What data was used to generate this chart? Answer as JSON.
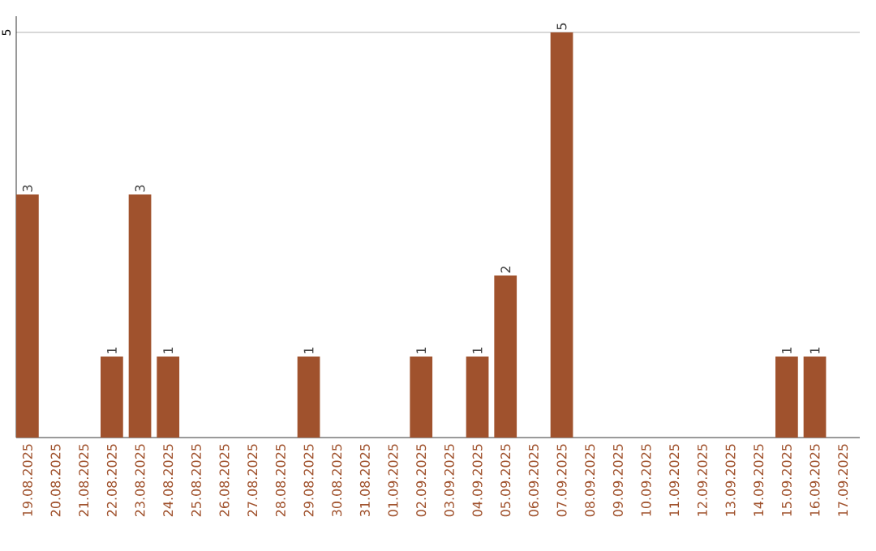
{
  "chart_data": {
    "type": "bar",
    "categories": [
      "19.08.2025",
      "20.08.2025",
      "21.08.2025",
      "22.08.2025",
      "23.08.2025",
      "24.08.2025",
      "25.08.2025",
      "26.08.2025",
      "27.08.2025",
      "28.08.2025",
      "29.08.2025",
      "30.08.2025",
      "31.08.2025",
      "01.09.2025",
      "02.09.2025",
      "03.09.2025",
      "04.09.2025",
      "05.09.2025",
      "06.09.2025",
      "07.09.2025",
      "08.09.2025",
      "09.09.2025",
      "10.09.2025",
      "11.09.2025",
      "12.09.2025",
      "13.09.2025",
      "14.09.2025",
      "15.09.2025",
      "16.09.2025",
      "17.09.2025"
    ],
    "values": [
      3,
      0,
      0,
      1,
      3,
      1,
      0,
      0,
      0,
      0,
      1,
      0,
      0,
      0,
      1,
      0,
      1,
      2,
      0,
      5,
      0,
      0,
      0,
      0,
      0,
      0,
      0,
      1,
      1,
      0
    ],
    "value_labels": [
      "3",
      null,
      null,
      "1",
      "3",
      "1",
      null,
      null,
      null,
      null,
      "1",
      null,
      null,
      null,
      "1",
      null,
      "1",
      "2",
      null,
      "5",
      null,
      null,
      null,
      null,
      null,
      null,
      null,
      "1",
      "1",
      null
    ],
    "color": "#a0522d",
    "ylim": [
      0,
      5.2
    ],
    "yticks": [
      5
    ],
    "grid": "y"
  }
}
